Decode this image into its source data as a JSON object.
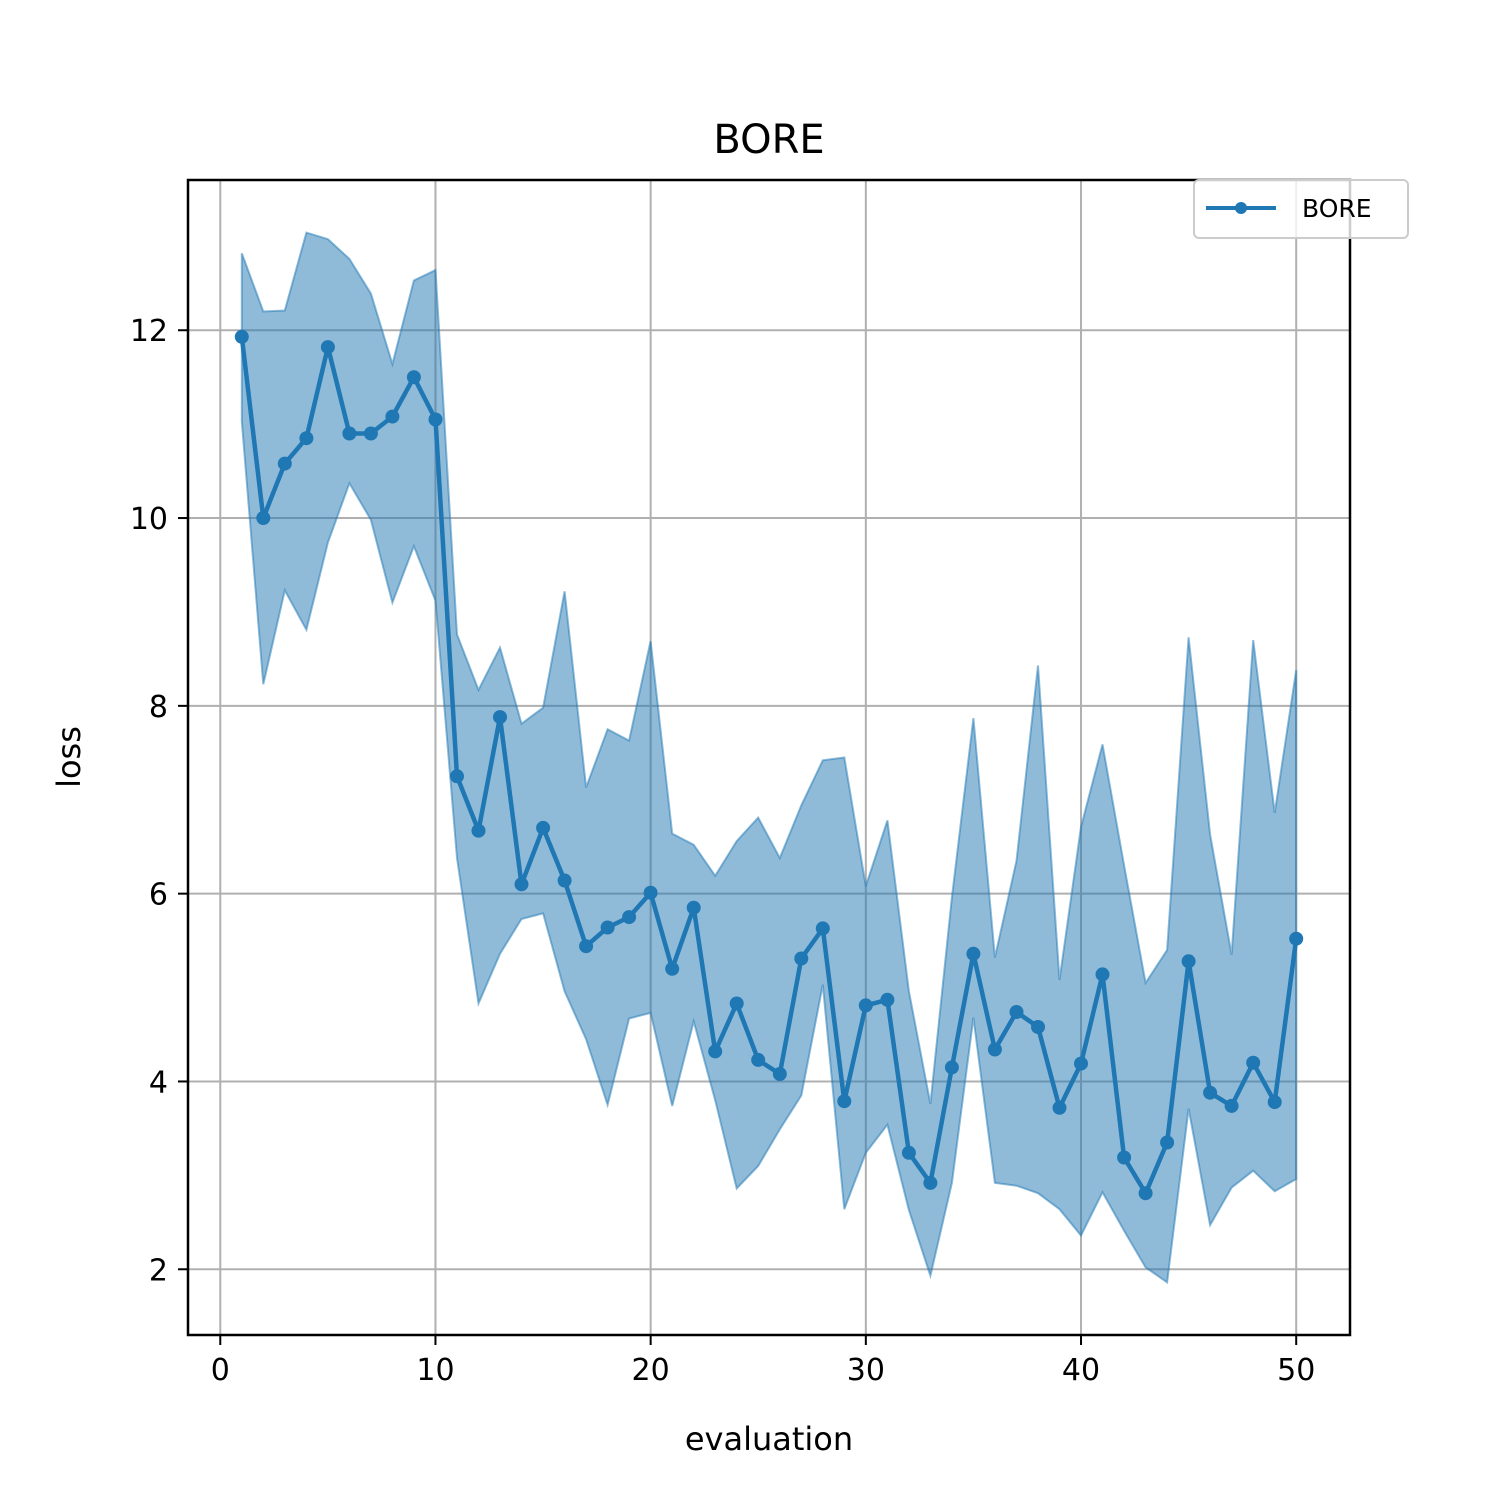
{
  "chart_data": {
    "type": "line",
    "title": "BORE",
    "xlabel": "evaluation",
    "ylabel": "loss",
    "xlim": [
      -1.5,
      52.5
    ],
    "ylim": [
      1.3,
      13.6
    ],
    "xticks": [
      0,
      10,
      20,
      30,
      40,
      50
    ],
    "yticks": [
      2,
      4,
      6,
      8,
      10,
      12
    ],
    "grid": true,
    "legend": {
      "position": "top-right",
      "entries": [
        "BORE"
      ]
    },
    "colors": {
      "line": "#1f77b4",
      "band": "#1f77b4"
    },
    "x": [
      1,
      2,
      3,
      4,
      5,
      6,
      7,
      8,
      9,
      10,
      11,
      12,
      13,
      14,
      15,
      16,
      17,
      18,
      19,
      20,
      21,
      22,
      23,
      24,
      25,
      26,
      27,
      28,
      29,
      30,
      31,
      32,
      33,
      34,
      35,
      36,
      37,
      38,
      39,
      40,
      41,
      42,
      43,
      44,
      45,
      46,
      47,
      48,
      49,
      50
    ],
    "series": [
      {
        "name": "BORE",
        "values": [
          11.93,
          10.0,
          10.58,
          10.85,
          11.82,
          10.9,
          10.9,
          11.08,
          11.5,
          11.05,
          7.25,
          6.67,
          7.88,
          6.1,
          6.7,
          6.14,
          5.44,
          5.64,
          5.75,
          6.01,
          5.2,
          5.85,
          4.32,
          4.83,
          4.23,
          4.08,
          5.31,
          5.63,
          3.79,
          4.81,
          4.87,
          3.24,
          2.92,
          4.15,
          5.36,
          4.34,
          4.74,
          4.58,
          3.72,
          4.19,
          5.14,
          3.19,
          2.81,
          3.35,
          5.28,
          3.88,
          3.74,
          4.2,
          3.78,
          5.52
        ],
        "upper": [
          12.82,
          12.2,
          12.21,
          13.04,
          12.97,
          12.76,
          12.39,
          11.64,
          12.53,
          12.64,
          8.76,
          8.17,
          8.62,
          7.81,
          7.98,
          9.22,
          7.13,
          7.75,
          7.63,
          8.69,
          6.64,
          6.52,
          6.19,
          6.56,
          6.81,
          6.38,
          6.94,
          7.42,
          7.45,
          6.08,
          6.78,
          4.96,
          3.76,
          5.96,
          7.87,
          5.32,
          6.35,
          8.43,
          5.08,
          6.71,
          7.59,
          6.3,
          5.05,
          5.4,
          8.73,
          6.63,
          5.35,
          8.7,
          6.86,
          8.38
        ],
        "lower": [
          11.03,
          8.23,
          9.23,
          8.81,
          9.74,
          10.37,
          9.98,
          9.1,
          9.7,
          9.12,
          6.38,
          4.83,
          5.36,
          5.73,
          5.79,
          4.96,
          4.45,
          3.75,
          4.67,
          4.73,
          3.74,
          4.64,
          3.8,
          2.86,
          3.1,
          3.49,
          3.85,
          5.03,
          2.64,
          3.24,
          3.54,
          2.63,
          1.93,
          2.92,
          4.68,
          2.92,
          2.89,
          2.81,
          2.64,
          2.36,
          2.82,
          2.41,
          2.02,
          1.86,
          3.71,
          2.47,
          2.87,
          3.05,
          2.83,
          2.96
        ]
      }
    ]
  }
}
